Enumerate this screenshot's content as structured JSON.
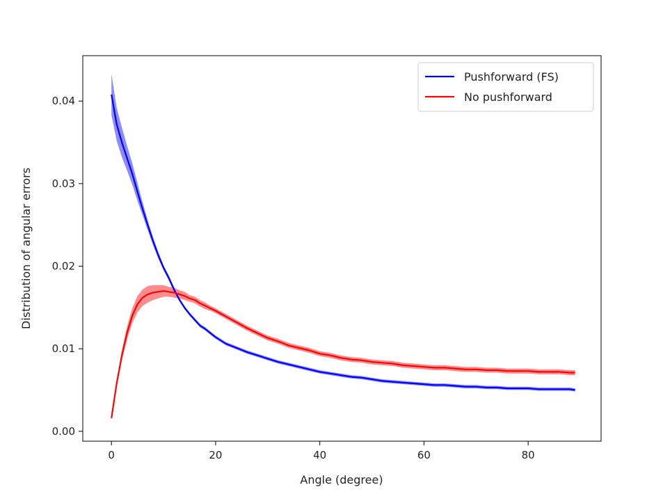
{
  "chart_data": {
    "type": "line",
    "xlabel": "Angle (degree)",
    "ylabel": "Distribution of angular errors",
    "xlim": [
      -5.5,
      94
    ],
    "ylim": [
      -0.0012,
      0.0455
    ],
    "xticks": [
      0,
      20,
      40,
      60,
      80
    ],
    "yticks": [
      0.0,
      0.01,
      0.02,
      0.03,
      0.04
    ],
    "xtick_labels": [
      "0",
      "20",
      "40",
      "60",
      "80"
    ],
    "ytick_labels": [
      "0.00",
      "0.01",
      "0.02",
      "0.03",
      "0.04"
    ],
    "grid": false,
    "legend_position": "top-right",
    "series": [
      {
        "name": "Pushforward (FS)",
        "color": "#0000ff",
        "shaded_band": true,
        "x": [
          0,
          1,
          2,
          3,
          4,
          5,
          6,
          7,
          8,
          9,
          10,
          11,
          12,
          13,
          14,
          15,
          16,
          17,
          18,
          19,
          20,
          22,
          24,
          26,
          28,
          30,
          32,
          34,
          36,
          38,
          40,
          42,
          44,
          46,
          48,
          50,
          52,
          54,
          56,
          58,
          60,
          62,
          64,
          66,
          68,
          70,
          72,
          74,
          76,
          78,
          80,
          82,
          84,
          86,
          88,
          89
        ],
        "y": [
          0.0408,
          0.0372,
          0.035,
          0.0331,
          0.0312,
          0.029,
          0.0269,
          0.0249,
          0.023,
          0.0213,
          0.0198,
          0.0186,
          0.0172,
          0.016,
          0.015,
          0.0142,
          0.0135,
          0.0128,
          0.0124,
          0.0119,
          0.0114,
          0.0106,
          0.0101,
          0.0096,
          0.0092,
          0.0088,
          0.0084,
          0.0081,
          0.0078,
          0.0075,
          0.0072,
          0.007,
          0.0068,
          0.0066,
          0.0065,
          0.0063,
          0.0061,
          0.006,
          0.0059,
          0.0058,
          0.0057,
          0.0056,
          0.0056,
          0.0055,
          0.0054,
          0.0054,
          0.0053,
          0.0053,
          0.0052,
          0.0052,
          0.0052,
          0.0051,
          0.0051,
          0.0051,
          0.0051,
          0.005
        ],
        "band": [
          0.0025,
          0.002,
          0.0018,
          0.0015,
          0.0013,
          0.0011,
          0.0008,
          0.0006,
          0.0005,
          0.0004,
          0.0003,
          0.0003,
          0.0003,
          0.0002,
          0.0002,
          0.0002,
          0.0002,
          0.0002,
          0.0002,
          0.0002,
          0.0002,
          0.0002,
          0.0002,
          0.0002,
          0.0002,
          0.0002,
          0.0002,
          0.0002,
          0.0002,
          0.0002,
          0.0002,
          0.0002,
          0.0002,
          0.0002,
          0.0002,
          0.0002,
          0.0002,
          0.0002,
          0.0002,
          0.0002,
          0.0002,
          0.0002,
          0.0002,
          0.0002,
          0.0002,
          0.0002,
          0.0002,
          0.0002,
          0.0002,
          0.0002,
          0.0002,
          0.0002,
          0.0002,
          0.0002,
          0.0002,
          0.0002
        ]
      },
      {
        "name": "No pushforward",
        "color": "#ff0000",
        "shaded_band": true,
        "x": [
          0,
          1,
          2,
          3,
          4,
          5,
          6,
          7,
          8,
          9,
          10,
          11,
          12,
          13,
          14,
          15,
          16,
          17,
          18,
          19,
          20,
          22,
          24,
          26,
          28,
          30,
          32,
          34,
          36,
          38,
          40,
          42,
          44,
          46,
          48,
          50,
          52,
          54,
          56,
          58,
          60,
          62,
          64,
          66,
          68,
          70,
          72,
          74,
          76,
          78,
          80,
          82,
          84,
          86,
          88,
          89
        ],
        "y": [
          0.0016,
          0.0058,
          0.0092,
          0.0119,
          0.014,
          0.0154,
          0.0162,
          0.0166,
          0.0168,
          0.0169,
          0.017,
          0.0169,
          0.0168,
          0.0166,
          0.0164,
          0.0161,
          0.0159,
          0.0155,
          0.0152,
          0.0149,
          0.0146,
          0.0139,
          0.0132,
          0.0125,
          0.0119,
          0.0113,
          0.0109,
          0.0104,
          0.0101,
          0.0098,
          0.0094,
          0.0092,
          0.0089,
          0.0087,
          0.0086,
          0.0084,
          0.0083,
          0.0082,
          0.008,
          0.0079,
          0.0078,
          0.0077,
          0.0077,
          0.0076,
          0.0075,
          0.0075,
          0.0074,
          0.0074,
          0.0073,
          0.0073,
          0.0073,
          0.0072,
          0.0072,
          0.0072,
          0.0071,
          0.0071
        ],
        "band": [
          0.0002,
          0.0004,
          0.0006,
          0.0008,
          0.0009,
          0.001,
          0.001,
          0.001,
          0.0009,
          0.0008,
          0.0007,
          0.0006,
          0.0006,
          0.0005,
          0.0005,
          0.0004,
          0.0004,
          0.0004,
          0.0004,
          0.0003,
          0.0003,
          0.0003,
          0.0003,
          0.0003,
          0.0003,
          0.0003,
          0.0003,
          0.0003,
          0.0003,
          0.0003,
          0.0003,
          0.0003,
          0.0003,
          0.0003,
          0.0003,
          0.0003,
          0.0003,
          0.0003,
          0.0003,
          0.0003,
          0.0003,
          0.0003,
          0.0003,
          0.0003,
          0.0003,
          0.0003,
          0.0003,
          0.0003,
          0.0003,
          0.0003,
          0.0003,
          0.0003,
          0.0003,
          0.0003,
          0.0003,
          0.0003
        ]
      }
    ]
  }
}
